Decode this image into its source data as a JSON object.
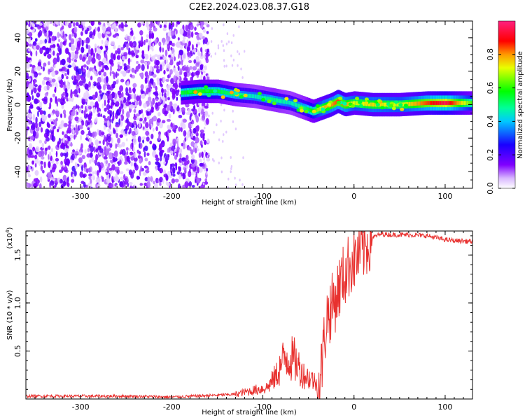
{
  "title": "C2E2.2024.023.08.37.G18",
  "chart_data": [
    {
      "type": "heatmap",
      "xlabel": "Height of straight line (km)",
      "ylabel": "Frequency (Hz)",
      "xlim": [
        -360,
        130
      ],
      "ylim": [
        -50,
        50
      ],
      "x_ticks": [
        -300,
        -200,
        -100,
        0,
        100
      ],
      "y_ticks": [
        -40,
        -20,
        0,
        20,
        40
      ],
      "colorbar": {
        "label": "Normalized spectral amplitude",
        "range": [
          0.0,
          1.0
        ],
        "ticks": [
          0.0,
          0.2,
          0.4,
          0.6,
          0.8
        ],
        "tick_labels": [
          "0.0",
          "0.2",
          "0.4",
          "0.6",
          "0.8"
        ]
      },
      "ridge": {
        "x": [
          -190,
          -170,
          -150,
          -130,
          -110,
          -90,
          -70,
          -55,
          -45,
          -35,
          -25,
          -18,
          -10,
          0,
          20,
          50,
          80,
          100,
          130
        ],
        "frequency": [
          7,
          8,
          8,
          6,
          5,
          3,
          1,
          -2,
          -4,
          -2,
          0,
          2,
          0,
          1,
          0,
          0,
          1,
          1,
          1
        ],
        "amplitude": [
          0.55,
          0.6,
          0.55,
          0.5,
          0.45,
          0.5,
          0.45,
          0.5,
          0.6,
          0.75,
          0.8,
          0.85,
          0.8,
          0.7,
          0.75,
          0.7,
          0.85,
          0.95,
          0.6
        ]
      }
    },
    {
      "type": "line",
      "xlabel": "Height of straight line (km)",
      "ylabel": "SNR (10 * v/v)",
      "scale_label": "(x10",
      "scale_exponent": "4",
      "scale_close": ")",
      "xlim": [
        -360,
        130
      ],
      "ylim": [
        0,
        1.75
      ],
      "x_ticks": [
        -300,
        -200,
        -100,
        0,
        100
      ],
      "y_ticks": [
        0.5,
        1.0,
        1.5
      ],
      "y_tick_labels": [
        "0.5",
        "1.0",
        "1.5"
      ],
      "color": "#e8312f",
      "series": [
        {
          "x": [
            -360,
            -300,
            -250,
            -200,
            -150,
            -130,
            -110,
            -95,
            -85,
            -75,
            -65,
            -55,
            -45,
            -38,
            -30,
            -25,
            -20,
            -15,
            -10,
            -5,
            0,
            10,
            20,
            30,
            40,
            60,
            80,
            100,
            110,
            130
          ],
          "y": [
            0.03,
            0.03,
            0.03,
            0.02,
            0.04,
            0.05,
            0.09,
            0.12,
            0.25,
            0.45,
            0.4,
            0.25,
            0.2,
            0.12,
            0.85,
            0.95,
            1.05,
            1.2,
            1.3,
            1.4,
            1.45,
            1.55,
            1.68,
            1.72,
            1.71,
            1.71,
            1.7,
            1.66,
            1.65,
            1.64
          ]
        }
      ]
    }
  ]
}
